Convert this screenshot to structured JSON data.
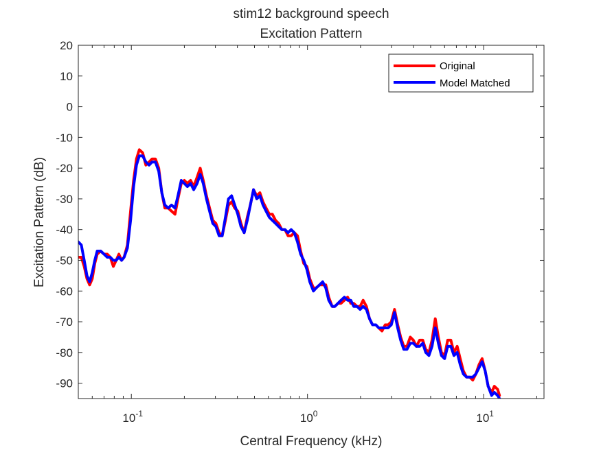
{
  "chart_data": {
    "type": "line",
    "title": "stim12 background speech",
    "subtitle": "Excitation Pattern",
    "xlabel": "Central Frequency (kHz)",
    "ylabel": "Excitation Pattern (dB)",
    "xscale": "log",
    "xlim": [
      0.05,
      22
    ],
    "ylim": [
      -95,
      20
    ],
    "yticks": [
      20,
      10,
      0,
      -10,
      -20,
      -30,
      -40,
      -50,
      -60,
      -70,
      -80,
      -90
    ],
    "xticks": [
      {
        "value": 0.1,
        "base": "10",
        "exp": "-1"
      },
      {
        "value": 1,
        "base": "10",
        "exp": "0"
      },
      {
        "value": 10,
        "base": "10",
        "exp": "1"
      }
    ],
    "grid": false,
    "legend_position": "top-right",
    "series": [
      {
        "name": "Original",
        "color": "#ff0000",
        "points": [
          [
            0.05,
            -49
          ],
          [
            0.052,
            -49
          ],
          [
            0.054,
            -52
          ],
          [
            0.056,
            -56
          ],
          [
            0.058,
            -58
          ],
          [
            0.06,
            -56
          ],
          [
            0.062,
            -51
          ],
          [
            0.064,
            -48
          ],
          [
            0.067,
            -47
          ],
          [
            0.07,
            -48
          ],
          [
            0.073,
            -48
          ],
          [
            0.076,
            -49
          ],
          [
            0.079,
            -52
          ],
          [
            0.082,
            -50
          ],
          [
            0.085,
            -48
          ],
          [
            0.088,
            -50
          ],
          [
            0.091,
            -49
          ],
          [
            0.095,
            -45
          ],
          [
            0.099,
            -34
          ],
          [
            0.103,
            -24
          ],
          [
            0.107,
            -17
          ],
          [
            0.111,
            -14
          ],
          [
            0.116,
            -15
          ],
          [
            0.121,
            -19
          ],
          [
            0.126,
            -18
          ],
          [
            0.131,
            -17
          ],
          [
            0.137,
            -17
          ],
          [
            0.143,
            -20
          ],
          [
            0.149,
            -28
          ],
          [
            0.155,
            -33
          ],
          [
            0.162,
            -33
          ],
          [
            0.169,
            -34
          ],
          [
            0.177,
            -35
          ],
          [
            0.184,
            -30
          ],
          [
            0.192,
            -25
          ],
          [
            0.2,
            -24
          ],
          [
            0.208,
            -25
          ],
          [
            0.217,
            -24
          ],
          [
            0.226,
            -26
          ],
          [
            0.236,
            -23
          ],
          [
            0.246,
            -20
          ],
          [
            0.256,
            -24
          ],
          [
            0.267,
            -29
          ],
          [
            0.278,
            -33
          ],
          [
            0.29,
            -37
          ],
          [
            0.302,
            -38
          ],
          [
            0.315,
            -41
          ],
          [
            0.328,
            -42
          ],
          [
            0.342,
            -37
          ],
          [
            0.356,
            -32
          ],
          [
            0.371,
            -31
          ],
          [
            0.386,
            -33
          ],
          [
            0.402,
            -34
          ],
          [
            0.419,
            -38
          ],
          [
            0.437,
            -41
          ],
          [
            0.455,
            -36
          ],
          [
            0.474,
            -32
          ],
          [
            0.494,
            -27
          ],
          [
            0.515,
            -29
          ],
          [
            0.537,
            -28
          ],
          [
            0.559,
            -31
          ],
          [
            0.582,
            -33
          ],
          [
            0.607,
            -35
          ],
          [
            0.632,
            -35
          ],
          [
            0.659,
            -37
          ],
          [
            0.686,
            -38
          ],
          [
            0.715,
            -40
          ],
          [
            0.745,
            -40
          ],
          [
            0.776,
            -42
          ],
          [
            0.808,
            -42
          ],
          [
            0.842,
            -41
          ],
          [
            0.877,
            -42
          ],
          [
            0.914,
            -47
          ],
          [
            0.952,
            -51
          ],
          [
            0.992,
            -52
          ],
          [
            1.03,
            -56
          ],
          [
            1.08,
            -59
          ],
          [
            1.12,
            -59
          ],
          [
            1.17,
            -58
          ],
          [
            1.22,
            -58
          ],
          [
            1.27,
            -58
          ],
          [
            1.32,
            -62
          ],
          [
            1.38,
            -65
          ],
          [
            1.43,
            -65
          ],
          [
            1.49,
            -64
          ],
          [
            1.55,
            -64
          ],
          [
            1.62,
            -63
          ],
          [
            1.69,
            -62
          ],
          [
            1.76,
            -64
          ],
          [
            1.83,
            -64
          ],
          [
            1.91,
            -65
          ],
          [
            1.99,
            -65
          ],
          [
            2.07,
            -63
          ],
          [
            2.16,
            -65
          ],
          [
            2.25,
            -69
          ],
          [
            2.34,
            -71
          ],
          [
            2.44,
            -71
          ],
          [
            2.54,
            -72
          ],
          [
            2.65,
            -73
          ],
          [
            2.76,
            -71
          ],
          [
            2.87,
            -71
          ],
          [
            2.99,
            -70
          ],
          [
            3.12,
            -66
          ],
          [
            3.25,
            -71
          ],
          [
            3.38,
            -75
          ],
          [
            3.52,
            -78
          ],
          [
            3.67,
            -78
          ],
          [
            3.83,
            -75
          ],
          [
            3.99,
            -76
          ],
          [
            4.15,
            -78
          ],
          [
            4.33,
            -76
          ],
          [
            4.51,
            -76
          ],
          [
            4.69,
            -79
          ],
          [
            4.89,
            -80
          ],
          [
            5.09,
            -76
          ],
          [
            5.31,
            -69
          ],
          [
            5.53,
            -75
          ],
          [
            5.76,
            -80
          ],
          [
            6.0,
            -81
          ],
          [
            6.25,
            -76
          ],
          [
            6.51,
            -76
          ],
          [
            6.78,
            -80
          ],
          [
            7.07,
            -78
          ],
          [
            7.36,
            -82
          ],
          [
            7.67,
            -86
          ],
          [
            7.99,
            -88
          ],
          [
            8.32,
            -88
          ],
          [
            8.67,
            -89
          ],
          [
            9.03,
            -87
          ],
          [
            9.41,
            -84
          ],
          [
            9.8,
            -82
          ],
          [
            10.2,
            -86
          ],
          [
            10.6,
            -91
          ],
          [
            11.1,
            -93
          ],
          [
            11.5,
            -91
          ],
          [
            12.0,
            -92
          ],
          [
            12.3,
            -94
          ]
        ]
      },
      {
        "name": "Model Matched",
        "color": "#0000ff",
        "points": [
          [
            0.05,
            -44
          ],
          [
            0.052,
            -45
          ],
          [
            0.054,
            -50
          ],
          [
            0.056,
            -55
          ],
          [
            0.058,
            -57
          ],
          [
            0.06,
            -54
          ],
          [
            0.062,
            -50
          ],
          [
            0.064,
            -47
          ],
          [
            0.067,
            -47
          ],
          [
            0.07,
            -48
          ],
          [
            0.073,
            -49
          ],
          [
            0.076,
            -49
          ],
          [
            0.079,
            -50
          ],
          [
            0.082,
            -50
          ],
          [
            0.085,
            -49
          ],
          [
            0.088,
            -50
          ],
          [
            0.091,
            -49
          ],
          [
            0.095,
            -46
          ],
          [
            0.099,
            -37
          ],
          [
            0.103,
            -26
          ],
          [
            0.107,
            -19
          ],
          [
            0.111,
            -16
          ],
          [
            0.116,
            -16
          ],
          [
            0.121,
            -18
          ],
          [
            0.126,
            -19
          ],
          [
            0.131,
            -18
          ],
          [
            0.137,
            -18
          ],
          [
            0.143,
            -21
          ],
          [
            0.149,
            -28
          ],
          [
            0.155,
            -32
          ],
          [
            0.162,
            -33
          ],
          [
            0.169,
            -32
          ],
          [
            0.177,
            -33
          ],
          [
            0.184,
            -29
          ],
          [
            0.192,
            -24
          ],
          [
            0.2,
            -25
          ],
          [
            0.208,
            -26
          ],
          [
            0.217,
            -25
          ],
          [
            0.226,
            -27
          ],
          [
            0.236,
            -25
          ],
          [
            0.246,
            -22
          ],
          [
            0.256,
            -25
          ],
          [
            0.267,
            -30
          ],
          [
            0.278,
            -34
          ],
          [
            0.29,
            -38
          ],
          [
            0.302,
            -39
          ],
          [
            0.315,
            -42
          ],
          [
            0.328,
            -42
          ],
          [
            0.342,
            -36
          ],
          [
            0.356,
            -30
          ],
          [
            0.371,
            -29
          ],
          [
            0.386,
            -32
          ],
          [
            0.402,
            -35
          ],
          [
            0.419,
            -39
          ],
          [
            0.437,
            -41
          ],
          [
            0.455,
            -37
          ],
          [
            0.474,
            -32
          ],
          [
            0.494,
            -27
          ],
          [
            0.515,
            -30
          ],
          [
            0.537,
            -29
          ],
          [
            0.559,
            -32
          ],
          [
            0.582,
            -34
          ],
          [
            0.607,
            -36
          ],
          [
            0.632,
            -37
          ],
          [
            0.659,
            -38
          ],
          [
            0.686,
            -39
          ],
          [
            0.715,
            -40
          ],
          [
            0.745,
            -40
          ],
          [
            0.776,
            -41
          ],
          [
            0.808,
            -40
          ],
          [
            0.842,
            -41
          ],
          [
            0.877,
            -44
          ],
          [
            0.914,
            -48
          ],
          [
            0.952,
            -50
          ],
          [
            0.992,
            -53
          ],
          [
            1.03,
            -57
          ],
          [
            1.08,
            -60
          ],
          [
            1.12,
            -59
          ],
          [
            1.17,
            -58
          ],
          [
            1.22,
            -57
          ],
          [
            1.27,
            -59
          ],
          [
            1.32,
            -63
          ],
          [
            1.38,
            -65
          ],
          [
            1.43,
            -65
          ],
          [
            1.49,
            -64
          ],
          [
            1.55,
            -63
          ],
          [
            1.62,
            -62
          ],
          [
            1.69,
            -63
          ],
          [
            1.76,
            -63
          ],
          [
            1.83,
            -65
          ],
          [
            1.91,
            -65
          ],
          [
            1.99,
            -66
          ],
          [
            2.07,
            -65
          ],
          [
            2.16,
            -66
          ],
          [
            2.25,
            -69
          ],
          [
            2.34,
            -71
          ],
          [
            2.44,
            -71
          ],
          [
            2.54,
            -72
          ],
          [
            2.65,
            -72
          ],
          [
            2.76,
            -72
          ],
          [
            2.87,
            -72
          ],
          [
            2.99,
            -71
          ],
          [
            3.12,
            -67
          ],
          [
            3.25,
            -72
          ],
          [
            3.38,
            -76
          ],
          [
            3.52,
            -79
          ],
          [
            3.67,
            -79
          ],
          [
            3.83,
            -77
          ],
          [
            3.99,
            -77
          ],
          [
            4.15,
            -78
          ],
          [
            4.33,
            -78
          ],
          [
            4.51,
            -77
          ],
          [
            4.69,
            -80
          ],
          [
            4.89,
            -81
          ],
          [
            5.09,
            -78
          ],
          [
            5.31,
            -72
          ],
          [
            5.53,
            -77
          ],
          [
            5.76,
            -81
          ],
          [
            6.0,
            -82
          ],
          [
            6.25,
            -78
          ],
          [
            6.51,
            -78
          ],
          [
            6.78,
            -81
          ],
          [
            7.07,
            -80
          ],
          [
            7.36,
            -84
          ],
          [
            7.67,
            -87
          ],
          [
            7.99,
            -88
          ],
          [
            8.32,
            -88
          ],
          [
            8.67,
            -88
          ],
          [
            9.03,
            -87
          ],
          [
            9.41,
            -85
          ],
          [
            9.8,
            -83
          ],
          [
            10.2,
            -86
          ],
          [
            10.6,
            -91
          ],
          [
            11.1,
            -94
          ],
          [
            11.5,
            -93
          ],
          [
            12.0,
            -94
          ],
          [
            12.3,
            -95
          ]
        ]
      }
    ]
  }
}
